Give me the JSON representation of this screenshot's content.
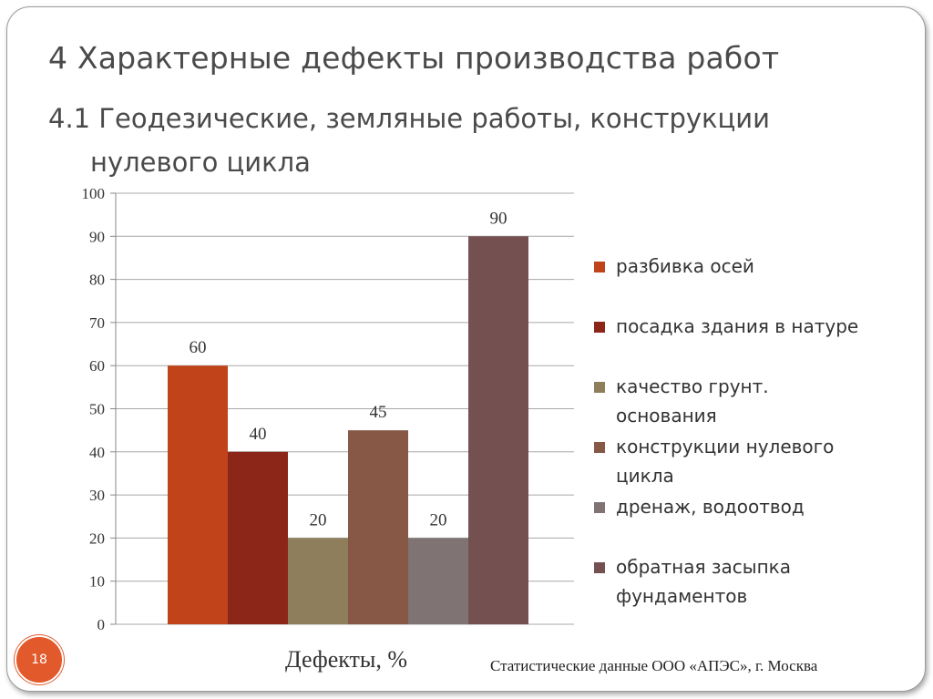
{
  "slide": {
    "title": "4 Характерные дефекты производства работ",
    "subtitle_line1": "4.1 Геодезические, земляные работы, конструкции",
    "subtitle_line2": "нулевого цикла",
    "page_number": "18",
    "source_note": "Статистические данные ООО «АПЭС», г. Москва"
  },
  "chart_data": {
    "type": "bar",
    "xlabel": "Дефекты, %",
    "ylim": [
      0,
      100
    ],
    "yticks": [
      0,
      10,
      20,
      30,
      40,
      50,
      60,
      70,
      80,
      90,
      100
    ],
    "grid": true,
    "legend_position": "right",
    "series": [
      {
        "name": "разбивка осей",
        "value": 60,
        "color": "#c0431a"
      },
      {
        "name": "посадка здания в натуре",
        "value": 40,
        "color": "#8b2618"
      },
      {
        "name": "качество грунт. основания",
        "value": 20,
        "color": "#8f7e5c"
      },
      {
        "name": "конструкции нулевого цикла",
        "value": 45,
        "color": "#875846"
      },
      {
        "name": "дренаж, водоотвод",
        "value": 20,
        "color": "#7f7473"
      },
      {
        "name": "обратная засыпка фундаментов",
        "value": 90,
        "color": "#745150"
      }
    ]
  }
}
